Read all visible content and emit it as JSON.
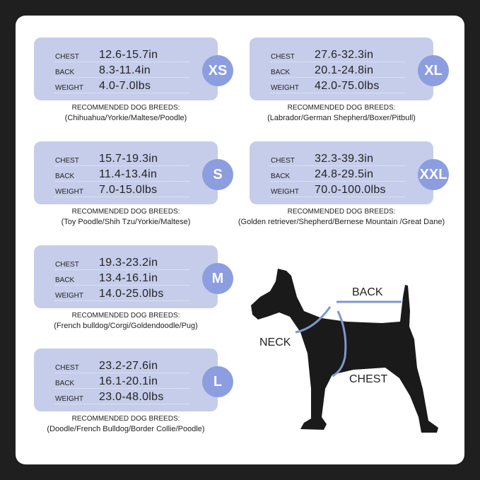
{
  "labels": {
    "chest": "CHEST",
    "back": "BACK",
    "weight": "WEIGHT",
    "breeds_heading": "RECOMMENDED DOG BREEDS:"
  },
  "sizes": [
    {
      "size": "XS",
      "chest": "12.6-15.7in",
      "back": "8.3-11.4in",
      "weight": "4.0-7.0lbs",
      "breeds": "(Chihuahua/Yorkie/Maltese/Poodle)"
    },
    {
      "size": "S",
      "chest": "15.7-19.3in",
      "back": "11.4-13.4in",
      "weight": "7.0-15.0lbs",
      "breeds": "(Toy Poodle/Shih Tzu/Yorkie/Maltese)"
    },
    {
      "size": "M",
      "chest": "19.3-23.2in",
      "back": "13.4-16.1in",
      "weight": "14.0-25.0lbs",
      "breeds": "(French bulldog/Corgi/Goldendoodle/Pug)"
    },
    {
      "size": "L",
      "chest": "23.2-27.6in",
      "back": "16.1-20.1in",
      "weight": "23.0-48.0lbs",
      "breeds": "(Doodle/French Bulldog/Border Collie/Poodle)"
    },
    {
      "size": "XL",
      "chest": "27.6-32.3in",
      "back": "20.1-24.8in",
      "weight": "42.0-75.0lbs",
      "breeds": "(Labrador/German Shepherd/Boxer/Pitbull)"
    },
    {
      "size": "XXL",
      "chest": "32.3-39.3in",
      "back": "24.8-29.5in",
      "weight": "70.0-100.0lbs",
      "breeds": "(Golden retriever/Shepherd/Bernese Mountain /Great Dane)"
    }
  ],
  "diagram": {
    "back": "BACK",
    "neck": "NECK",
    "chest": "CHEST"
  },
  "colors": {
    "box": "#c6cdea",
    "badge": "#8c9de0",
    "harness": "#8096d0",
    "dog": "#1a1a1a"
  }
}
